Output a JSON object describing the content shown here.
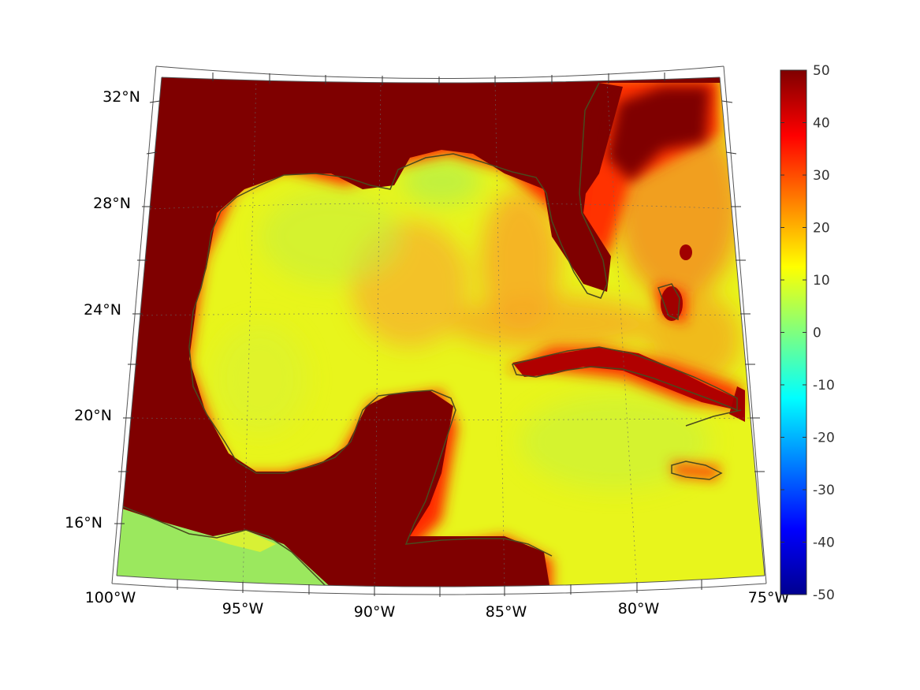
{
  "map": {
    "projection": "conic",
    "lon_range": [
      -100,
      -75
    ],
    "lat_range": [
      14,
      33
    ],
    "lon_ticks": [
      "100°W",
      "95°W",
      "90°W",
      "85°W",
      "80°W",
      "75°W"
    ],
    "lat_ticks": [
      "16°N",
      "20°N",
      "24°N",
      "28°N",
      "32°N"
    ],
    "graticule": "dotted",
    "coastline_color": "#4a4a1e",
    "ocean_colormap": "jet",
    "land_color": "#7f0000"
  },
  "colorbar": {
    "orientation": "vertical",
    "min": -50,
    "max": 50,
    "ticks": [
      "50",
      "40",
      "30",
      "20",
      "10",
      "0",
      "-10",
      "-20",
      "-30",
      "-40",
      "-50"
    ]
  }
}
